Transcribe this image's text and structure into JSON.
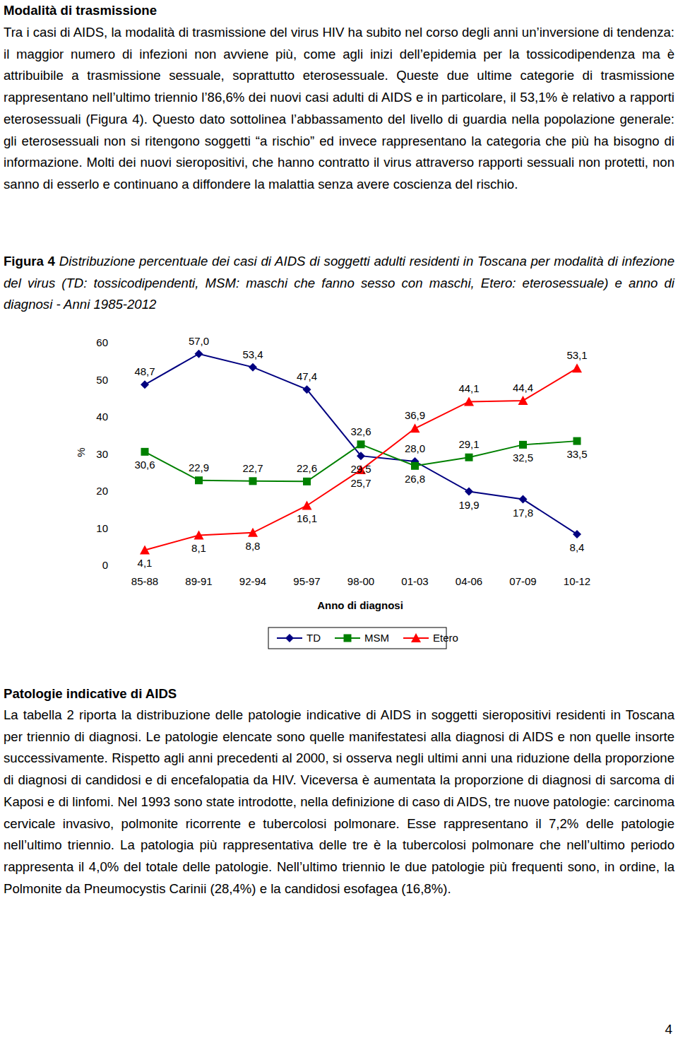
{
  "sections": [
    {
      "heading": "Modalità di trasmissione",
      "text": "Tra i casi di AIDS, la modalità di trasmissione del virus HIV ha subito nel corso degli anni un’inversione di tendenza: il maggior numero di infezioni non avviene più, come agli inizi dell’epidemia per la tossicodipendenza ma è attribuibile a trasmissione sessuale, soprattutto eterosessuale. Queste due ultime categorie di trasmissione rappresentano nell’ultimo triennio l’86,6% dei nuovi casi adulti di AIDS e in particolare, il 53,1% è relativo a rapporti eterosessuali (Figura 4). Questo dato sottolinea l’abbassamento del livello di guardia nella popolazione generale: gli eterosessuali non si ritengono soggetti “a rischio” ed invece rappresentano la categoria che più ha bisogno di informazione. Molti dei nuovi sieropositivi, che hanno contratto il virus attraverso rapporti sessuali non protetti, non sanno di esserlo e continuano a diffondere la malattia senza avere coscienza del rischio."
    },
    {
      "heading": "Patologie indicative di AIDS",
      "text": "La tabella 2 riporta la distribuzione delle patologie indicative di AIDS in soggetti sieropositivi residenti in Toscana per triennio di diagnosi. Le patologie elencate sono quelle manifestatesi alla diagnosi di AIDS e non quelle insorte successivamente. Rispetto agli anni precedenti al 2000, si osserva negli ultimi anni una riduzione della proporzione di diagnosi di candidosi e di encefalopatia da HIV. Viceversa è aumentata la proporzione di diagnosi di sarcoma di Kaposi e di linfomi. Nel 1993 sono state introdotte, nella definizione di caso di AIDS, tre nuove patologie: carcinoma cervicale invasivo, polmonite ricorrente e tubercolosi polmonare. Esse rappresentano il 7,2% delle patologie nell’ultimo triennio. La patologia più rappresentativa delle tre è la tubercolosi polmonare che nell’ultimo periodo rappresenta il 4,0% del totale delle patologie. Nell’ultimo triennio le due patologie più frequenti sono, in ordine, la Polmonite da Pneumocystis Carinii (28,4%) e la candidosi esofagea (16,8%)."
    }
  ],
  "figure": {
    "label": "Figura 4",
    "caption": "Distribuzione percentuale dei casi di AIDS di soggetti adulti residenti in Toscana per modalità di infezione del virus (TD: tossicodipendenti, MSM: maschi che fanno sesso con maschi, Etero: eterosessuale) e anno di diagnosi - Anni 1985-2012"
  },
  "chart_data": {
    "type": "line",
    "x_label": "Anno di diagnosi",
    "y_label": "%",
    "categories": [
      "85-88",
      "89-91",
      "92-94",
      "95-97",
      "98-00",
      "01-03",
      "04-06",
      "07-09",
      "10-12"
    ],
    "ylim": [
      0,
      60
    ],
    "yticks": [
      0,
      10,
      20,
      30,
      40,
      50,
      60
    ],
    "grid": false,
    "legend": "bottom",
    "data_labels": true,
    "series": [
      {
        "name": "TD",
        "color": "#000080",
        "marker": "diamond",
        "line_style": "solid",
        "values": [
          48.7,
          57.0,
          53.4,
          47.4,
          29.5,
          28.0,
          19.9,
          17.8,
          8.4
        ],
        "value_labels": [
          "48,7",
          "57,0",
          "53,4",
          "47,4",
          "29,5",
          "28,0",
          "19,9",
          "17,8",
          "8,4"
        ]
      },
      {
        "name": "MSM",
        "color": "#008000",
        "marker": "square",
        "line_style": "solid",
        "values": [
          30.6,
          22.9,
          22.7,
          22.6,
          32.6,
          26.8,
          29.1,
          32.5,
          33.5
        ],
        "value_labels": [
          "30,6",
          "22,9",
          "22,7",
          "22,6",
          "32,6",
          "26,8",
          "29,1",
          "32,5",
          "33,5"
        ]
      },
      {
        "name": "Etero",
        "color": "#ff0000",
        "marker": "triangle",
        "line_style": "solid",
        "values": [
          4.1,
          8.1,
          8.8,
          16.1,
          25.7,
          36.9,
          44.1,
          44.4,
          53.1
        ],
        "value_labels": [
          "4,1",
          "8,1",
          "8,8",
          "16,1",
          "25,7",
          "36,9",
          "44,1",
          "44,4",
          "53,1"
        ]
      }
    ]
  },
  "page_number": "4"
}
